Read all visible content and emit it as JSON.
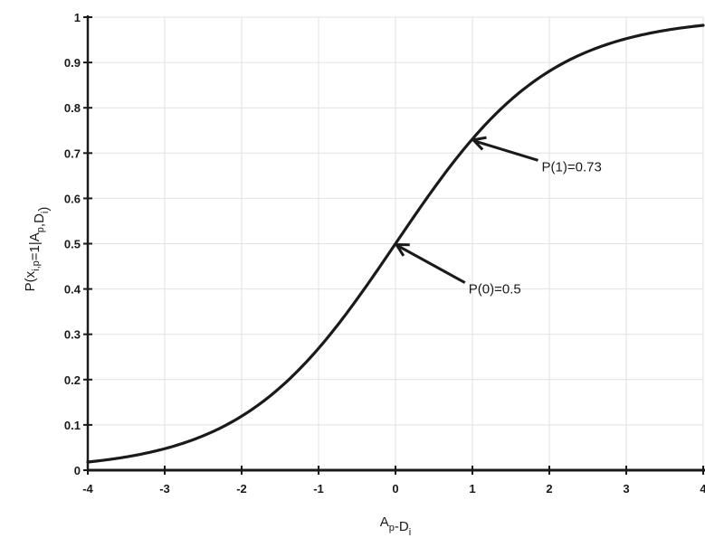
{
  "chart_data": {
    "type": "line",
    "title": "",
    "xlabel": {
      "base": "A",
      "sub1": "p",
      "mid": "-D",
      "sub2": "i"
    },
    "ylabel": {
      "parts": [
        {
          "t": "P(x",
          "sub": false
        },
        {
          "t": "i,p",
          "sub": true
        },
        {
          "t": "=1|A",
          "sub": false
        },
        {
          "t": "p",
          "sub": true
        },
        {
          "t": ",D",
          "sub": false
        },
        {
          "t": "i",
          "sub": true
        },
        {
          "t": ")",
          "sub": false
        }
      ]
    },
    "xlim": [
      -4,
      4
    ],
    "ylim": [
      0,
      1
    ],
    "grid": true,
    "x_ticks": [
      -4,
      -3,
      -2,
      -1,
      0,
      1,
      2,
      3,
      4
    ],
    "x_tick_labels": [
      "-4",
      "-3",
      "-2",
      "-1",
      "0",
      "1",
      "2",
      "3",
      "4"
    ],
    "y_ticks": [
      0,
      0.1,
      0.2,
      0.3,
      0.4,
      0.5,
      0.6,
      0.7,
      0.8,
      0.9,
      1
    ],
    "y_tick_labels": [
      "0",
      "0.1",
      "0.2",
      "0.3",
      "0.4",
      "0.5",
      "0.6",
      "0.7",
      "0.8",
      "0.9",
      "1"
    ],
    "series": [
      {
        "x": [
          -4,
          -3.5,
          -3,
          -2.5,
          -2,
          -1.5,
          -1,
          -0.5,
          0,
          0.5,
          1,
          1.5,
          2,
          2.5,
          3,
          3.5,
          4
        ],
        "y": [
          0.018,
          0.029,
          0.047,
          0.076,
          0.119,
          0.182,
          0.269,
          0.378,
          0.5,
          0.622,
          0.731,
          0.818,
          0.881,
          0.924,
          0.953,
          0.971,
          0.982
        ],
        "color": "#1a1a1a"
      }
    ],
    "annotations": [
      {
        "text": "P(0)=0.5",
        "point": [
          0,
          0.5
        ],
        "text_at": [
          0.95,
          0.39
        ]
      },
      {
        "text": "P(1)=0.73",
        "point": [
          1,
          0.731
        ],
        "text_at": [
          1.9,
          0.66
        ]
      }
    ],
    "colors": {
      "line": "#1a1a1a",
      "axis": "#1a1a1a",
      "grid": "#e2e2e2",
      "text": "#1a1a1a"
    }
  }
}
